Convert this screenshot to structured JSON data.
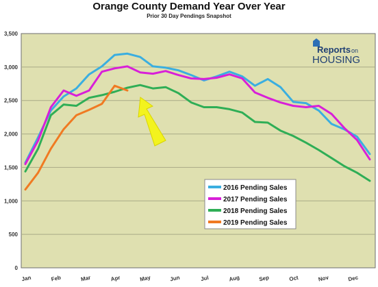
{
  "chart_data": {
    "type": "line",
    "title": "Orange County Demand Year Over Year",
    "subtitle": "Prior 30 Day Pendings Snapshot",
    "xlabel": "",
    "ylabel": "",
    "ylim": [
      0,
      3500
    ],
    "yticks": [
      "0",
      "500",
      "1,000",
      "1,500",
      "2,000",
      "2,500",
      "3,000",
      "3,500"
    ],
    "ytick_values": [
      0,
      500,
      1000,
      1500,
      2000,
      2500,
      3000,
      3500
    ],
    "xticks": [
      "Jan",
      "Feb",
      "Mar",
      "Apr",
      "May",
      "Jun",
      "Jul",
      "Aug",
      "Sep",
      "Oct",
      "Nov",
      "Dec"
    ],
    "grid": true,
    "legend_position": "bottom-right",
    "logo": {
      "line1": "Reports",
      "line1_suffix": "on",
      "line2": "HOUSING"
    },
    "series": [
      {
        "name": "2016 Pending Sales",
        "color": "#3aaee0",
        "values": [
          1570,
          1950,
          2350,
          2560,
          2680,
          2890,
          3010,
          3180,
          3200,
          3150,
          3010,
          2990,
          2950,
          2880,
          2800,
          2860,
          2930,
          2860,
          2720,
          2820,
          2700,
          2480,
          2460,
          2350,
          2150,
          2070,
          1960,
          1700
        ]
      },
      {
        "name": "2017 Pending Sales",
        "color": "#d81fd8",
        "values": [
          1550,
          1900,
          2400,
          2650,
          2570,
          2650,
          2930,
          2980,
          3010,
          2920,
          2900,
          2940,
          2880,
          2830,
          2820,
          2840,
          2890,
          2830,
          2620,
          2540,
          2470,
          2420,
          2400,
          2420,
          2300,
          2090,
          1910,
          1620
        ]
      },
      {
        "name": "2018 Pending Sales",
        "color": "#2fae56",
        "values": [
          1440,
          1780,
          2280,
          2440,
          2420,
          2540,
          2580,
          2630,
          2690,
          2730,
          2680,
          2700,
          2610,
          2470,
          2400,
          2400,
          2370,
          2320,
          2180,
          2170,
          2050,
          1970,
          1870,
          1760,
          1640,
          1520,
          1420,
          1300
        ]
      },
      {
        "name": "2019 Pending Sales",
        "color": "#f07a22",
        "values": [
          1170,
          1420,
          1780,
          2070,
          2280,
          2360,
          2450,
          2720,
          2650
        ]
      }
    ]
  }
}
